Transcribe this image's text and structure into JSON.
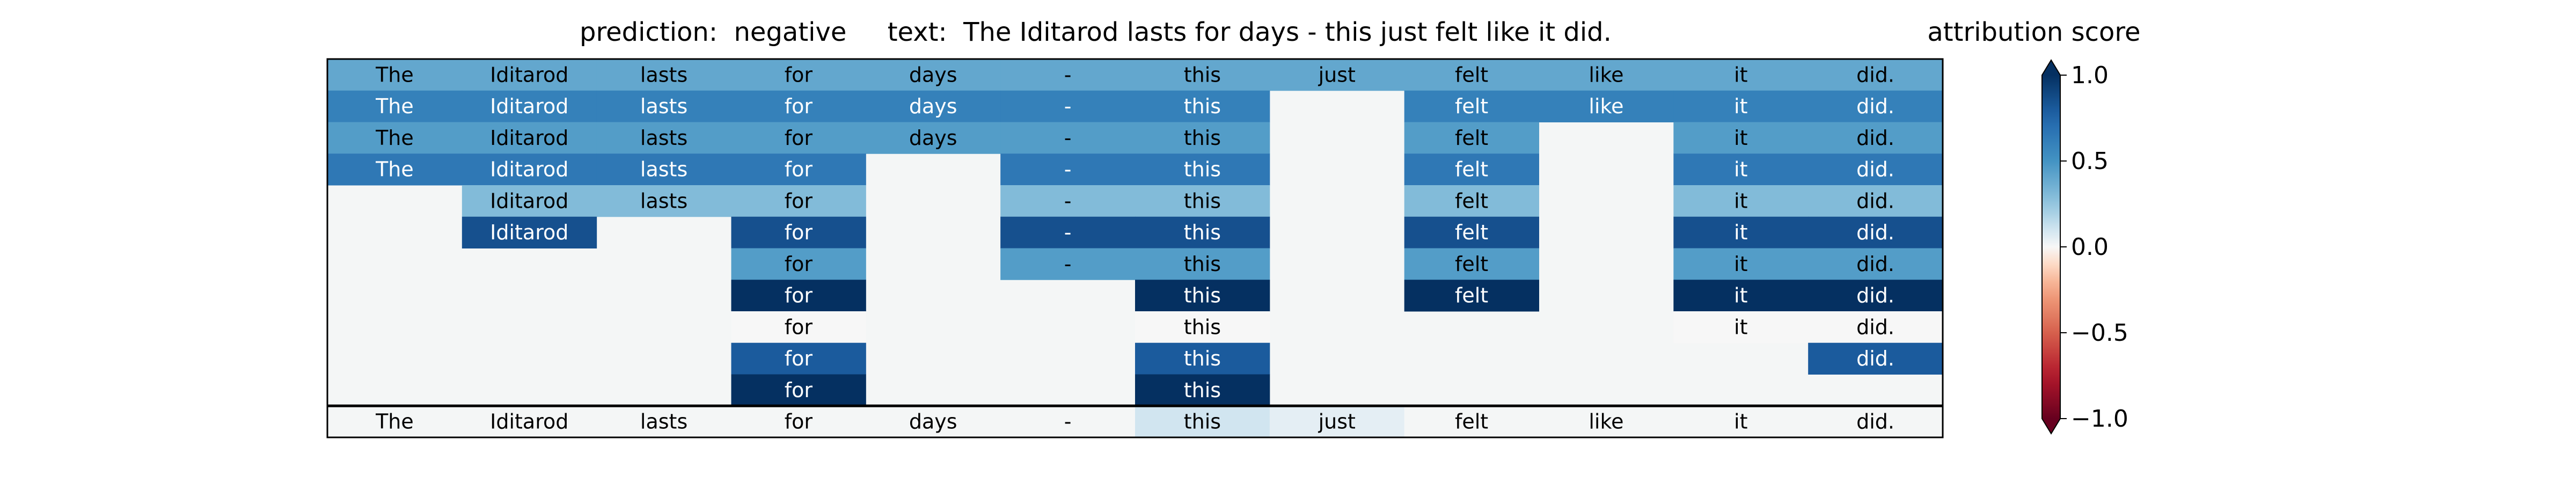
{
  "chart_data": {
    "type": "heatmap",
    "title": "prediction:  negative     text:  The Iditarod lasts for days - this just felt like it did.",
    "prediction_label": "prediction:",
    "prediction_value": "negative",
    "text_label": "text:",
    "text_value": "The Iditarod lasts for days - this just felt like it did.",
    "tokens": [
      "The",
      "Iditarod",
      "lasts",
      "for",
      "days",
      "-",
      "this",
      "just",
      "felt",
      "like",
      "it",
      "did."
    ],
    "grid_rows": [
      [
        0.4,
        0.4,
        0.4,
        0.4,
        0.4,
        0.4,
        0.4,
        0.4,
        0.4,
        0.4,
        0.4,
        0.4
      ],
      [
        0.6,
        0.6,
        0.6,
        0.6,
        0.6,
        0.6,
        0.6,
        null,
        0.6,
        0.6,
        0.6,
        0.6
      ],
      [
        0.45,
        0.45,
        0.45,
        0.45,
        0.45,
        0.45,
        0.45,
        null,
        0.45,
        null,
        0.45,
        0.45
      ],
      [
        0.65,
        0.65,
        0.65,
        0.65,
        null,
        0.65,
        0.65,
        null,
        0.65,
        null,
        0.65,
        0.65
      ],
      [
        null,
        0.3,
        0.3,
        0.3,
        null,
        0.3,
        0.3,
        null,
        0.3,
        null,
        0.3,
        0.3
      ],
      [
        null,
        0.85,
        null,
        0.85,
        null,
        0.85,
        0.85,
        null,
        0.85,
        null,
        0.85,
        0.85
      ],
      [
        null,
        null,
        null,
        0.45,
        null,
        0.45,
        0.45,
        null,
        0.45,
        null,
        0.45,
        0.45
      ],
      [
        null,
        null,
        null,
        1.0,
        null,
        null,
        1.0,
        null,
        1.0,
        null,
        1.0,
        1.0
      ],
      [
        null,
        null,
        null,
        0.0,
        null,
        null,
        0.0,
        null,
        null,
        null,
        0.0,
        0.0
      ],
      [
        null,
        null,
        null,
        0.8,
        null,
        null,
        0.8,
        null,
        null,
        null,
        null,
        0.8
      ],
      [
        null,
        null,
        null,
        1.05,
        null,
        null,
        1.05,
        null,
        null,
        null,
        null,
        null
      ]
    ],
    "summary_row": [
      0.0,
      0.0,
      0.0,
      0.0,
      0.0,
      0.0,
      0.1,
      0.05,
      0.0,
      0.0,
      0.0,
      0.0
    ],
    "colorbar": {
      "label": "attribution score",
      "ticks": [
        1.0,
        0.5,
        0.0,
        -0.5,
        -1.0
      ],
      "tick_labels": [
        "1.0",
        "0.5",
        "0.0",
        "−0.5",
        "−1.0"
      ],
      "range": [
        -1.0,
        1.0
      ],
      "colormap": "RdBu",
      "extend": "both"
    }
  }
}
